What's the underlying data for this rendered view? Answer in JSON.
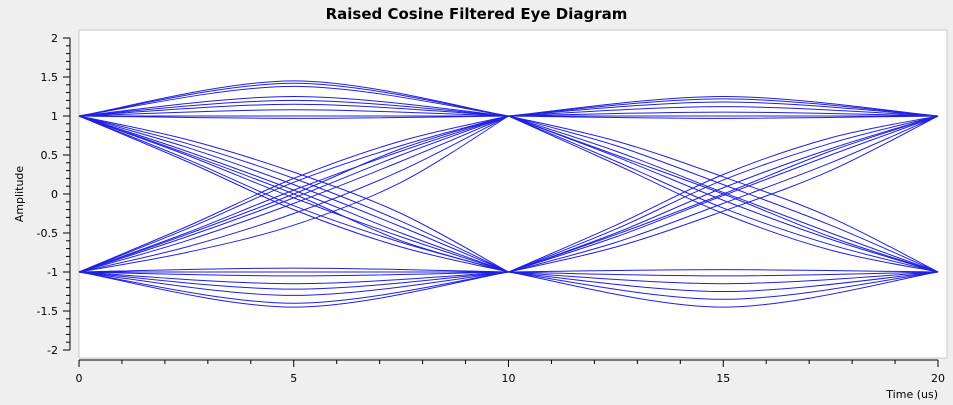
{
  "chart_data": {
    "type": "line",
    "title": "Raised Cosine Filtered Eye Diagram",
    "xlabel": "Time (us)",
    "ylabel": "Amplitude",
    "xlim": [
      0,
      20
    ],
    "ylim": [
      -2,
      2
    ],
    "x_ticks": [
      0,
      5,
      10,
      15,
      20
    ],
    "y_ticks": [
      2,
      1.5,
      1,
      0.5,
      0,
      -0.5,
      -1,
      -1.5,
      -2
    ],
    "grid": false,
    "line_color": "#2020e0",
    "traces": [
      {
        "x": [
          0,
          5,
          10
        ],
        "y": [
          1,
          1.45,
          1
        ]
      },
      {
        "x": [
          0,
          5,
          10
        ],
        "y": [
          1,
          1.42,
          1
        ]
      },
      {
        "x": [
          0,
          5,
          10
        ],
        "y": [
          1,
          1.38,
          1
        ]
      },
      {
        "x": [
          0,
          5,
          10
        ],
        "y": [
          1,
          1.25,
          1
        ]
      },
      {
        "x": [
          0,
          5,
          10
        ],
        "y": [
          1,
          1.2,
          1
        ]
      },
      {
        "x": [
          0,
          5,
          10
        ],
        "y": [
          1,
          1.15,
          1
        ]
      },
      {
        "x": [
          0,
          5,
          10
        ],
        "y": [
          1,
          1.08,
          1
        ]
      },
      {
        "x": [
          0,
          5,
          10
        ],
        "y": [
          1,
          0.97,
          1
        ]
      },
      {
        "x": [
          0,
          5,
          10
        ],
        "y": [
          1,
          1.0,
          1
        ]
      },
      {
        "x": [
          0,
          5,
          10
        ],
        "y": [
          -1,
          -1.45,
          -1
        ]
      },
      {
        "x": [
          0,
          5,
          10
        ],
        "y": [
          -1,
          -1.4,
          -1
        ]
      },
      {
        "x": [
          0,
          5,
          10
        ],
        "y": [
          -1,
          -1.3,
          -1
        ]
      },
      {
        "x": [
          0,
          5,
          10
        ],
        "y": [
          -1,
          -1.22,
          -1
        ]
      },
      {
        "x": [
          0,
          5,
          10
        ],
        "y": [
          -1,
          -1.15,
          -1
        ]
      },
      {
        "x": [
          0,
          5,
          10
        ],
        "y": [
          -1,
          -1.05,
          -1
        ]
      },
      {
        "x": [
          0,
          5,
          10
        ],
        "y": [
          -1,
          -0.95,
          -1
        ]
      },
      {
        "x": [
          0,
          5,
          10
        ],
        "y": [
          -1,
          -1.0,
          -1
        ]
      },
      {
        "x": [
          0,
          2.5,
          5,
          7.5,
          10
        ],
        "y": [
          1,
          0.55,
          0.05,
          -0.5,
          -1
        ]
      },
      {
        "x": [
          0,
          2.5,
          5,
          7.5,
          10
        ],
        "y": [
          1,
          0.5,
          -0.05,
          -0.55,
          -1
        ]
      },
      {
        "x": [
          0,
          2.5,
          5,
          7.5,
          10
        ],
        "y": [
          1,
          0.45,
          -0.15,
          -0.62,
          -1
        ]
      },
      {
        "x": [
          0,
          2.5,
          5,
          7.5,
          10
        ],
        "y": [
          1,
          0.6,
          0.12,
          -0.42,
          -1
        ]
      },
      {
        "x": [
          0,
          2.5,
          5,
          7.5,
          10
        ],
        "y": [
          1,
          0.42,
          -0.2,
          -0.68,
          -1
        ]
      },
      {
        "x": [
          0,
          2.5,
          5,
          7.5,
          10
        ],
        "y": [
          1,
          0.65,
          0.2,
          -0.35,
          -1
        ]
      },
      {
        "x": [
          0,
          2.5,
          5,
          7.5,
          10
        ],
        "y": [
          1,
          0.52,
          0.0,
          -0.6,
          -1
        ]
      },
      {
        "x": [
          0,
          2.5,
          5,
          7.5,
          10
        ],
        "y": [
          1,
          0.7,
          0.28,
          -0.25,
          -1
        ]
      },
      {
        "x": [
          0,
          2.5,
          5,
          7.5,
          10
        ],
        "y": [
          -1,
          -0.55,
          -0.05,
          0.5,
          1
        ]
      },
      {
        "x": [
          0,
          2.5,
          5,
          7.5,
          10
        ],
        "y": [
          -1,
          -0.5,
          0.05,
          0.55,
          1
        ]
      },
      {
        "x": [
          0,
          2.5,
          5,
          7.5,
          10
        ],
        "y": [
          -1,
          -0.45,
          0.15,
          0.62,
          1
        ]
      },
      {
        "x": [
          0,
          2.5,
          5,
          7.5,
          10
        ],
        "y": [
          -1,
          -0.6,
          -0.12,
          0.42,
          1
        ]
      },
      {
        "x": [
          0,
          2.5,
          5,
          7.5,
          10
        ],
        "y": [
          -1,
          -0.42,
          0.2,
          0.68,
          1
        ]
      },
      {
        "x": [
          0,
          2.5,
          5,
          7.5,
          10
        ],
        "y": [
          -1,
          -0.68,
          -0.25,
          0.3,
          1
        ]
      },
      {
        "x": [
          0,
          2.5,
          5,
          7.5,
          10
        ],
        "y": [
          -1,
          -0.52,
          0.0,
          0.58,
          1
        ]
      },
      {
        "x": [
          0,
          2.5,
          5,
          7.5,
          10
        ],
        "y": [
          -1,
          -0.75,
          -0.4,
          0.15,
          1
        ]
      },
      {
        "x": [
          10,
          15,
          20
        ],
        "y": [
          1,
          1.25,
          1
        ]
      },
      {
        "x": [
          10,
          15,
          20
        ],
        "y": [
          1,
          1.22,
          1
        ]
      },
      {
        "x": [
          10,
          15,
          20
        ],
        "y": [
          1,
          1.18,
          1
        ]
      },
      {
        "x": [
          10,
          15,
          20
        ],
        "y": [
          1,
          1.12,
          1
        ]
      },
      {
        "x": [
          10,
          15,
          20
        ],
        "y": [
          1,
          1.05,
          1
        ]
      },
      {
        "x": [
          10,
          15,
          20
        ],
        "y": [
          1,
          0.97,
          1
        ]
      },
      {
        "x": [
          10,
          15,
          20
        ],
        "y": [
          1,
          1.0,
          1
        ]
      },
      {
        "x": [
          10,
          15,
          20
        ],
        "y": [
          -1,
          -1.45,
          -1
        ]
      },
      {
        "x": [
          10,
          15,
          20
        ],
        "y": [
          -1,
          -1.35,
          -1
        ]
      },
      {
        "x": [
          10,
          15,
          20
        ],
        "y": [
          -1,
          -1.25,
          -1
        ]
      },
      {
        "x": [
          10,
          15,
          20
        ],
        "y": [
          -1,
          -1.15,
          -1
        ]
      },
      {
        "x": [
          10,
          15,
          20
        ],
        "y": [
          -1,
          -1.05,
          -1
        ]
      },
      {
        "x": [
          10,
          15,
          20
        ],
        "y": [
          -1,
          -0.97,
          -1
        ]
      },
      {
        "x": [
          10,
          12.5,
          15,
          17.5,
          20
        ],
        "y": [
          1,
          0.55,
          0.02,
          -0.5,
          -1
        ]
      },
      {
        "x": [
          10,
          12.5,
          15,
          17.5,
          20
        ],
        "y": [
          1,
          0.48,
          -0.08,
          -0.58,
          -1
        ]
      },
      {
        "x": [
          10,
          12.5,
          15,
          17.5,
          20
        ],
        "y": [
          1,
          0.42,
          -0.18,
          -0.65,
          -1
        ]
      },
      {
        "x": [
          10,
          12.5,
          15,
          17.5,
          20
        ],
        "y": [
          1,
          0.62,
          0.12,
          -0.4,
          -1
        ]
      },
      {
        "x": [
          10,
          12.5,
          15,
          17.5,
          20
        ],
        "y": [
          1,
          0.38,
          -0.25,
          -0.72,
          -1
        ]
      },
      {
        "x": [
          10,
          12.5,
          15,
          17.5,
          20
        ],
        "y": [
          1,
          0.68,
          0.22,
          -0.3,
          -1
        ]
      },
      {
        "x": [
          10,
          12.5,
          15,
          17.5,
          20
        ],
        "y": [
          1,
          0.5,
          0.0,
          -0.55,
          -1
        ]
      },
      {
        "x": [
          10,
          12.5,
          15,
          17.5,
          20
        ],
        "y": [
          -1,
          -0.55,
          -0.02,
          0.5,
          1
        ]
      },
      {
        "x": [
          10,
          12.5,
          15,
          17.5,
          20
        ],
        "y": [
          -1,
          -0.5,
          0.08,
          0.58,
          1
        ]
      },
      {
        "x": [
          10,
          12.5,
          15,
          17.5,
          20
        ],
        "y": [
          -1,
          -0.45,
          0.18,
          0.65,
          1
        ]
      },
      {
        "x": [
          10,
          12.5,
          15,
          17.5,
          20
        ],
        "y": [
          -1,
          -0.62,
          -0.12,
          0.4,
          1
        ]
      },
      {
        "x": [
          10,
          12.5,
          15,
          17.5,
          20
        ],
        "y": [
          -1,
          -0.4,
          0.25,
          0.72,
          1
        ]
      },
      {
        "x": [
          10,
          12.5,
          15,
          17.5,
          20
        ],
        "y": [
          -1,
          -0.68,
          -0.22,
          0.3,
          1
        ]
      },
      {
        "x": [
          10,
          12.5,
          15,
          17.5,
          20
        ],
        "y": [
          -1,
          -0.52,
          0.0,
          0.55,
          1
        ]
      }
    ]
  }
}
